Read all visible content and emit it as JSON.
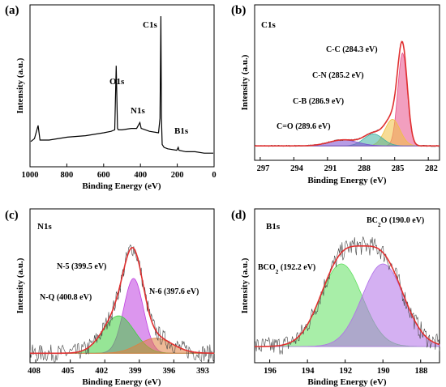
{
  "panels": {
    "a": {
      "letter": "(a)",
      "xlabel": "Binding Energy (eV)",
      "ylabel": "Intensity (a.u.)",
      "ticks": [
        "1000",
        "800",
        "600",
        "400",
        "200",
        "0"
      ],
      "peaks": {
        "c1s": "C1s",
        "o1s": "O1s",
        "n1s": "N1s",
        "b1s": "B1s"
      }
    },
    "b": {
      "letter": "(b)",
      "title": "C1s",
      "xlabel": "Binding Energy (eV)",
      "ylabel": "Intensity (a.u.)",
      "ticks": [
        "297",
        "294",
        "291",
        "288",
        "285",
        "282"
      ],
      "comps": {
        "cc": "C-C (284.3 eV)",
        "cn": "C-N (285.2 eV)",
        "cb": "C-B (286.9 eV)",
        "co": "C=O (289.6 eV)"
      }
    },
    "c": {
      "letter": "(c)",
      "title": "N1s",
      "xlabel": "Binding Energy (eV)",
      "ylabel": "Intensity (a.u.)",
      "ticks": [
        "408",
        "405",
        "402",
        "399",
        "396",
        "393"
      ],
      "comps": {
        "n5": "N-5 (399.5 eV)",
        "nq": "N-Q (400.8 eV)",
        "n6": "N-6 (397.6 eV)"
      }
    },
    "d": {
      "letter": "(d)",
      "title": "B1s",
      "xlabel": "Binding Energy (eV)",
      "ylabel": "Intensity (a.u.)",
      "ticks": [
        "196",
        "194",
        "192",
        "190",
        "188"
      ],
      "comps": {
        "bc2o_pre": "BC",
        "bc2o_sub": "2",
        "bc2o_post": "O (190.0 eV)",
        "bco2_pre": "BCO",
        "bco2_sub": "2",
        "bco2_post": " (192.2 eV)"
      }
    }
  },
  "colors": {
    "fit": "#e03030",
    "raw": "#444444"
  },
  "chart_data": [
    {
      "panel": "a",
      "type": "line",
      "xlabel": "Binding Energy (eV)",
      "ylabel": "Intensity (a.u.)",
      "xlim": [
        1000,
        0
      ],
      "x_reversed": true,
      "series": [
        {
          "x": [
            1000,
            980,
            960,
            950,
            900,
            800,
            700,
            600,
            560,
            540,
            532,
            525,
            520,
            500,
            450,
            420,
            402,
            395,
            350,
            300,
            292,
            287,
            284,
            280,
            270,
            250,
            200,
            192,
            188,
            150,
            100,
            50,
            0
          ],
          "y": [
            14,
            16,
            25,
            15,
            15,
            17,
            18,
            20,
            21,
            22,
            66,
            23,
            22,
            22,
            23,
            23,
            27,
            23,
            21,
            20,
            30,
            100,
            30,
            12,
            10,
            9,
            8,
            10,
            8,
            7,
            7,
            6,
            6
          ]
        }
      ],
      "peak_labels": [
        "C1s",
        "O1s",
        "N1s",
        "B1s"
      ]
    },
    {
      "panel": "b",
      "type": "area",
      "title": "C1s",
      "xlabel": "Binding Energy (eV)",
      "ylabel": "Intensity (a.u.)",
      "xlim": [
        297.5,
        281
      ],
      "ylim": [
        0,
        1.05
      ],
      "x_reversed": true,
      "baseline": 0.06,
      "series": [
        {
          "name": "C-C (284.3 eV)",
          "center": 284.3,
          "fwhm": 1.0,
          "height": 0.7,
          "color": "#e8508a"
        },
        {
          "name": "C-N (285.2 eV)",
          "center": 285.2,
          "fwhm": 1.6,
          "height": 0.2,
          "color": "#f0c040"
        },
        {
          "name": "C-B (286.9 eV)",
          "center": 286.9,
          "fwhm": 2.0,
          "height": 0.09,
          "color": "#40b0a0"
        },
        {
          "name": "C=O (289.6 eV)",
          "center": 289.6,
          "fwhm": 3.0,
          "height": 0.045,
          "color": "#7a4ad0"
        }
      ]
    },
    {
      "panel": "c",
      "type": "area",
      "title": "N1s",
      "xlabel": "Binding Energy (eV)",
      "ylabel": "Intensity (a.u.)",
      "xlim": [
        408.5,
        392.5
      ],
      "ylim": [
        0,
        1.0
      ],
      "x_reversed": true,
      "baseline": 0.05,
      "series": [
        {
          "name": "N-5 (399.5 eV)",
          "center": 399.5,
          "fwhm": 2.0,
          "height": 0.6,
          "color": "#c040e0"
        },
        {
          "name": "N-Q (400.8 eV)",
          "center": 400.8,
          "fwhm": 3.2,
          "height": 0.3,
          "color": "#40d040"
        },
        {
          "name": "N-6 (397.6 eV)",
          "center": 397.6,
          "fwhm": 3.5,
          "height": 0.12,
          "color": "#e08040"
        }
      ]
    },
    {
      "panel": "d",
      "type": "area",
      "title": "B1s",
      "xlabel": "Binding Energy (eV)",
      "ylabel": "Intensity (a.u.)",
      "xlim": [
        196.8,
        187
      ],
      "ylim": [
        0,
        1.0
      ],
      "x_reversed": true,
      "baseline": 0.08,
      "series": [
        {
          "name": "BCO2 (192.2 eV)",
          "center": 192.2,
          "fwhm": 2.6,
          "height": 0.68,
          "color": "#60e060"
        },
        {
          "name": "BC2O (190.0 eV)",
          "center": 190.0,
          "fwhm": 2.6,
          "height": 0.68,
          "color": "#b070e8"
        }
      ]
    }
  ]
}
